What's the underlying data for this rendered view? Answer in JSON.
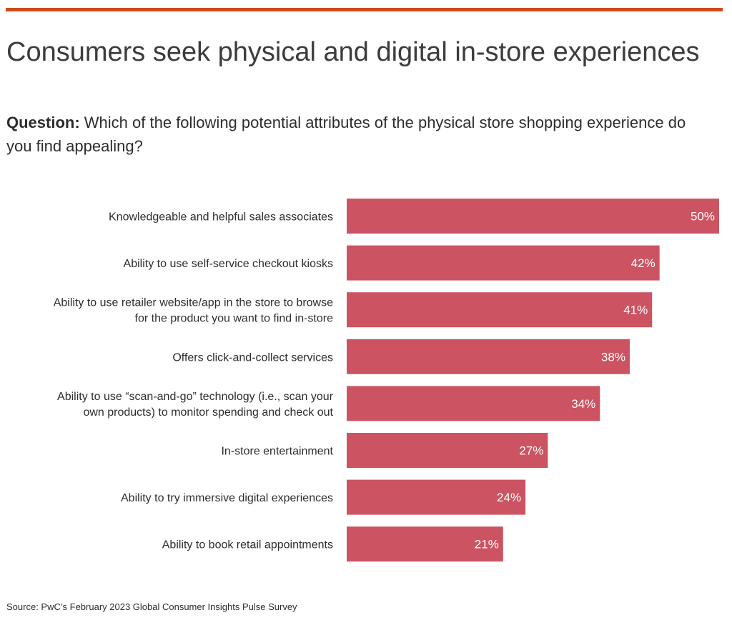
{
  "header": {
    "title": "Consumers seek physical and digital in-store experiences",
    "question_label": "Question:",
    "question_text": "Which of the following potential attributes of the physical store shopping experience do you find appealing?"
  },
  "colors": {
    "accent_rule": "#d04a1a",
    "bar": "#cc5462",
    "bar_label": "#ffffff"
  },
  "chart_data": {
    "type": "bar",
    "orientation": "horizontal",
    "categories": [
      [
        "Knowledgeable and helpful sales associates"
      ],
      [
        "Ability to use self-service checkout kiosks"
      ],
      [
        "Ability to use retailer website/app in the store to browse",
        "for the product you want to find in-store"
      ],
      [
        "Offers click-and-collect services"
      ],
      [
        "Ability to use “scan-and-go” technology (i.e., scan your",
        "own products) to monitor spending and check out"
      ],
      [
        "In-store entertainment"
      ],
      [
        "Ability to try immersive digital experiences"
      ],
      [
        "Ability to book retail appointments"
      ]
    ],
    "values": [
      50,
      42,
      41,
      38,
      34,
      27,
      24,
      21
    ],
    "value_labels": [
      "50%",
      "42%",
      "41%",
      "38%",
      "34%",
      "27%",
      "24%",
      "21%"
    ],
    "xlim": [
      0,
      50
    ],
    "grid": false,
    "legend": "none"
  },
  "footer": {
    "source": "Source: PwC’s February 2023 Global Consumer Insights Pulse Survey"
  }
}
